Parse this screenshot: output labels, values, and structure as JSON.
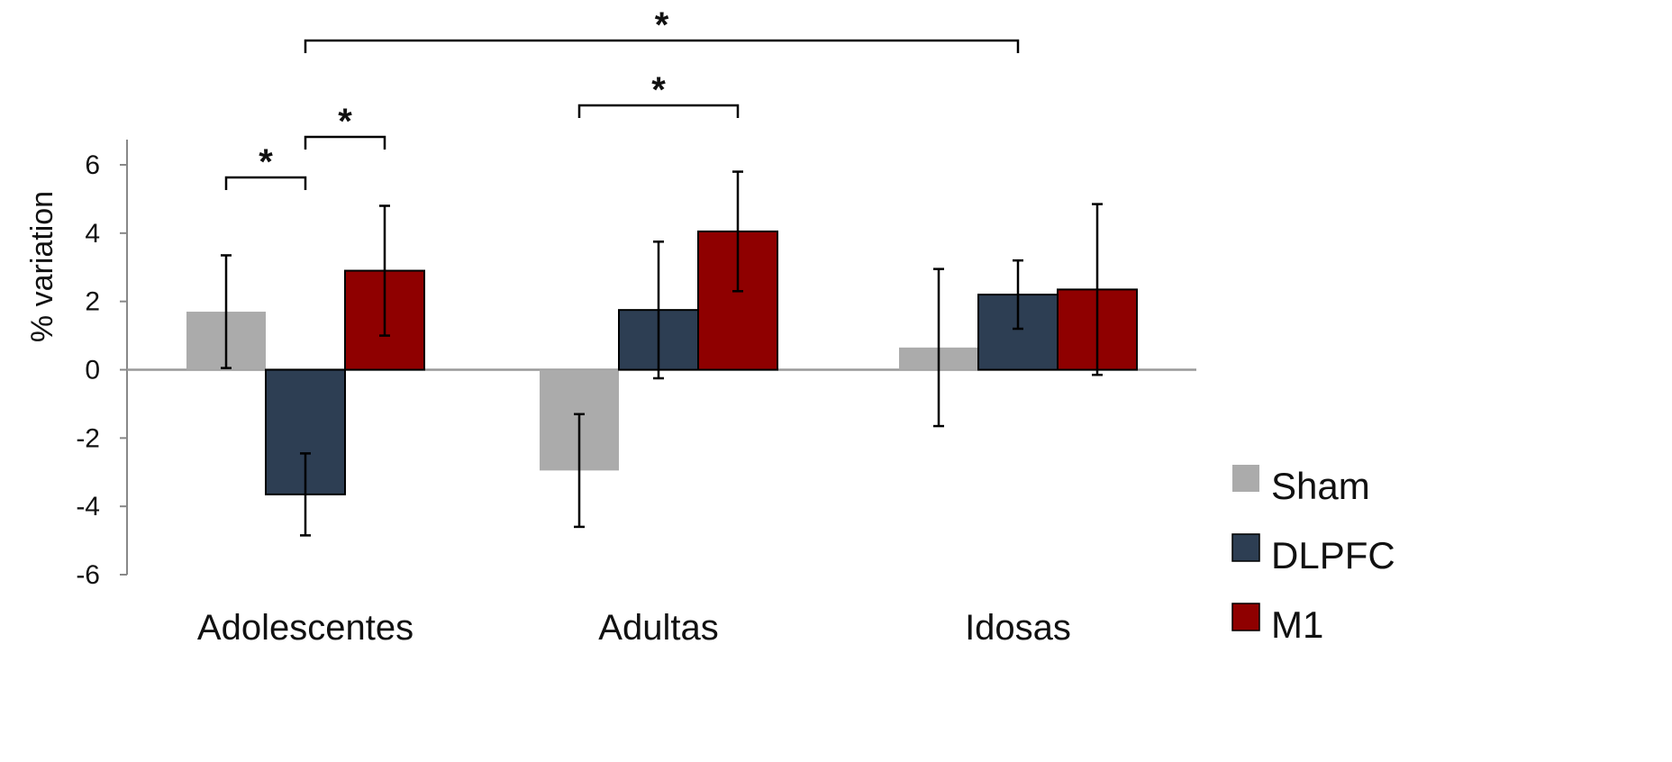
{
  "chart_data": {
    "type": "bar",
    "title": "",
    "xlabel": "",
    "ylabel": "% variation",
    "ylim": [
      -6,
      6
    ],
    "yticks": [
      6,
      4,
      2,
      0,
      -2,
      -4,
      -6
    ],
    "categories": [
      "Adolescentes",
      "Adultas",
      "Idosas"
    ],
    "series": [
      {
        "name": "Sham",
        "color": "#ababab",
        "values": [
          1.7,
          -2.95,
          0.65
        ],
        "error": [
          1.65,
          1.65,
          2.3
        ]
      },
      {
        "name": "DLPFC",
        "color": "#2d3e53",
        "values": [
          -3.65,
          1.75,
          2.2
        ],
        "error": [
          1.2,
          2.0,
          1.0
        ]
      },
      {
        "name": "M1",
        "color": "#8f0000",
        "values": [
          2.9,
          4.05,
          2.35
        ],
        "error": [
          1.9,
          1.75,
          2.5
        ]
      }
    ],
    "legend": {
      "position": "bottom-right"
    },
    "significance": [
      {
        "label": "*",
        "from": {
          "category": 0,
          "series": 0
        },
        "to": {
          "category": 0,
          "series": 1
        }
      },
      {
        "label": "*",
        "from": {
          "category": 0,
          "series": 1
        },
        "to": {
          "category": 0,
          "series": 2
        }
      },
      {
        "label": "*",
        "from": {
          "category": 1,
          "series": 0
        },
        "to": {
          "category": 1,
          "series": 2
        }
      },
      {
        "label": "*",
        "from": {
          "category": 0,
          "series": 1
        },
        "to": {
          "category": 2,
          "series": 1
        }
      }
    ]
  }
}
